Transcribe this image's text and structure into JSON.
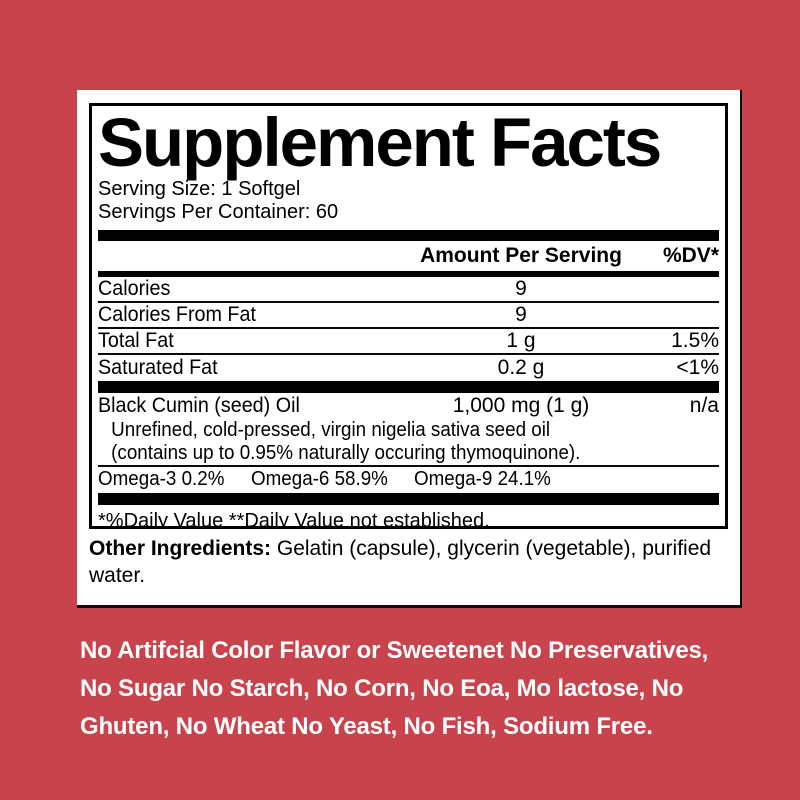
{
  "page": {
    "background_color": "#c8434c",
    "panel_background": "#ffffff",
    "text_color": "#000000",
    "claims_text_color": "#ffffff"
  },
  "label": {
    "title": "Supplement Facts",
    "serving_size": "Serving Size: 1 Softgel",
    "servings_per_container": "Servings Per Container: 60",
    "header": {
      "amount": "Amount Per Serving",
      "dv": "%DV*"
    },
    "rows": [
      {
        "name": "Calories",
        "amount": "9",
        "dv": ""
      },
      {
        "name": "Calories From Fat",
        "amount": "9",
        "dv": ""
      },
      {
        "name": "Total Fat",
        "amount": "1 g",
        "dv": "1.5%"
      },
      {
        "name": "Saturated Fat",
        "amount": "0.2 g",
        "dv": "<1%"
      }
    ],
    "ingredient_row": {
      "name": "Black Cumin (seed) Oil",
      "amount": "1,000 mg (1 g)",
      "dv": "n/a"
    },
    "ingredient_details": [
      "Unrefined, cold-pressed, virgin nigelia sativa seed oil",
      "(contains up to 0.95% naturally occuring thymoquinone)."
    ],
    "omega_values": [
      "Omega-3 0.2%",
      "Omega-6 58.9%",
      "Omega-9 24.1%"
    ],
    "footnote": "*%Daily Value **Daily Value not established.",
    "other_ingredients_label": "Other Ingredients:",
    "other_ingredients_text": " Gelatin (capsule), glycerin (vegetable), purified water."
  },
  "claims": {
    "lines": [
      "No Artifcial Color Flavor or Sweetenet No Preservatives,",
      "No Sugar No Starch, No Corn, No Eoa, Mo lactose, No",
      "Ghuten, No Wheat No Yeast, No Fish, Sodium Free."
    ]
  }
}
